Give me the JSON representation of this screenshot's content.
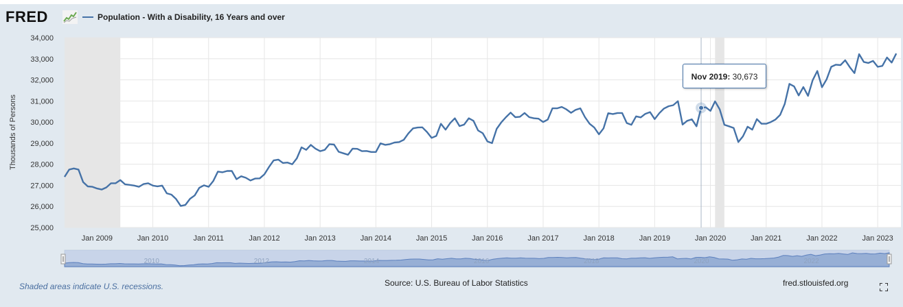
{
  "header": {
    "logo": "FRED",
    "legend_label": "Population - With a Disability, 16 Years and over"
  },
  "colors": {
    "series": "#4572a7",
    "recession": "#e6e6e6",
    "background": "#e1e9f0"
  },
  "tooltip": {
    "label": "Nov 2019:",
    "value": "30,673"
  },
  "footer": {
    "note": "Shaded areas indicate U.S. recessions.",
    "source": "Source: U.S. Bureau of Labor Statistics",
    "url": "fred.stlouisfed.org"
  },
  "navigator": {
    "labels": [
      "2010",
      "2012",
      "2014",
      "2016",
      "2018",
      "2020",
      "2022"
    ]
  },
  "chart_data": {
    "type": "line",
    "ylabel": "Thousands of Persons",
    "ylim": [
      25000,
      34000
    ],
    "yticks": [
      25000,
      26000,
      27000,
      28000,
      29000,
      30000,
      31000,
      32000,
      33000,
      34000
    ],
    "ytick_labels": [
      "25,000",
      "26,000",
      "27,000",
      "28,000",
      "29,000",
      "30,000",
      "31,000",
      "32,000",
      "33,000",
      "34,000"
    ],
    "xlim": [
      "2008-06",
      "2023-06"
    ],
    "xticks": [
      "2009-01",
      "2010-01",
      "2011-01",
      "2012-01",
      "2013-01",
      "2014-01",
      "2015-01",
      "2016-01",
      "2017-01",
      "2018-01",
      "2019-01",
      "2020-01",
      "2021-01",
      "2022-01",
      "2023-01"
    ],
    "xtick_labels": [
      "Jan 2009",
      "Jan 2010",
      "Jan 2011",
      "Jan 2012",
      "Jan 2013",
      "Jan 2014",
      "Jan 2015",
      "Jan 2016",
      "Jan 2017",
      "Jan 2018",
      "Jan 2019",
      "Jan 2020",
      "Jan 2021",
      "Jan 2022",
      "Jan 2023"
    ],
    "recessions": [
      [
        "2008-06",
        "2009-06"
      ],
      [
        "2020-02",
        "2020-04"
      ]
    ],
    "grid": true,
    "series": [
      {
        "name": "Population - With a Disability, 16 Years and over",
        "start": "2008-06",
        "values": [
          27400,
          27750,
          27800,
          27750,
          27150,
          26950,
          26930,
          26850,
          26800,
          26900,
          27100,
          27100,
          27250,
          27050,
          27020,
          26990,
          26930,
          27060,
          27100,
          26990,
          26950,
          26990,
          26620,
          26560,
          26350,
          26020,
          26070,
          26360,
          26520,
          26880,
          27000,
          26930,
          27200,
          27650,
          27620,
          27680,
          27680,
          27290,
          27430,
          27360,
          27230,
          27320,
          27330,
          27520,
          27870,
          28180,
          28220,
          28060,
          28080,
          28000,
          28280,
          28800,
          28680,
          28920,
          28740,
          28620,
          28680,
          28950,
          28930,
          28590,
          28520,
          28450,
          28740,
          28730,
          28620,
          28630,
          28580,
          28580,
          28990,
          28920,
          28950,
          29030,
          29050,
          29160,
          29460,
          29700,
          29740,
          29750,
          29530,
          29250,
          29340,
          29920,
          29640,
          29950,
          30180,
          29810,
          29880,
          30180,
          30060,
          29600,
          29470,
          29080,
          29000,
          29680,
          29990,
          30230,
          30450,
          30230,
          30250,
          30430,
          30230,
          30180,
          30160,
          30000,
          30120,
          30650,
          30650,
          30720,
          30600,
          30440,
          30580,
          30650,
          30230,
          29920,
          29740,
          29420,
          29700,
          30420,
          30380,
          30430,
          30430,
          29950,
          29870,
          30270,
          30220,
          30390,
          30470,
          30140,
          30420,
          30640,
          30750,
          30800,
          30990,
          29880,
          30060,
          30130,
          29800,
          30673,
          30700,
          30530,
          30980,
          30600,
          29870,
          29800,
          29720,
          29050,
          29320,
          29780,
          29640,
          30140,
          29920,
          29920,
          30000,
          30120,
          30340,
          30860,
          31810,
          31690,
          31260,
          31660,
          31240,
          31980,
          32420,
          31650,
          32020,
          32620,
          32720,
          32700,
          32930,
          32600,
          32320,
          33220,
          32850,
          32800,
          32900,
          32620,
          32660,
          33060,
          32820,
          33250
        ]
      }
    ]
  }
}
